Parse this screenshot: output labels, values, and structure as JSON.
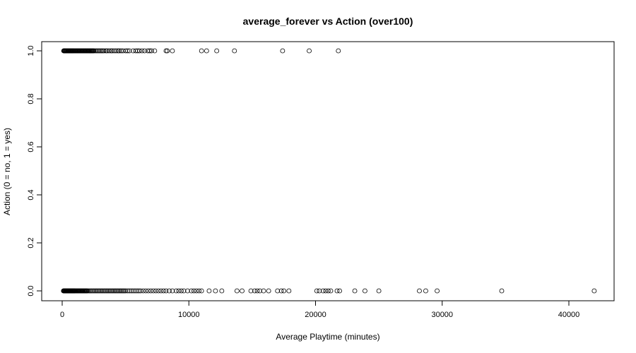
{
  "chart_data": {
    "type": "scatter",
    "title": "average_forever vs Action (over100)",
    "xlabel": "Average Playtime (minutes)",
    "ylabel": "Action (0 = no, 1 = yes)",
    "xlim": [
      0,
      44000
    ],
    "ylim": [
      0,
      1
    ],
    "x_ticks": [
      0,
      10000,
      20000,
      30000,
      40000
    ],
    "x_tick_labels": [
      "0",
      "10000",
      "20000",
      "30000",
      "40000"
    ],
    "y_ticks": [
      0,
      0.2,
      0.4,
      0.6,
      0.8,
      1
    ],
    "y_tick_labels": [
      "0.0",
      "0.2",
      "0.4",
      "0.6",
      "0.8",
      "1.0"
    ],
    "grid": false,
    "legend": "none",
    "series": [
      {
        "y_value": 1,
        "x": [
          120,
          150,
          180,
          220,
          260,
          300,
          340,
          380,
          420,
          460,
          500,
          540,
          580,
          620,
          660,
          700,
          740,
          780,
          820,
          860,
          900,
          950,
          1000,
          1050,
          1100,
          1150,
          1200,
          1250,
          1300,
          1350,
          1400,
          1450,
          1500,
          1550,
          1600,
          1650,
          1700,
          1750,
          1800,
          1850,
          1900,
          1950,
          2000,
          2050,
          2100,
          2150,
          2200,
          2250,
          2300,
          2350,
          2400,
          2450,
          2500,
          2600,
          2700,
          2800,
          2900,
          3000,
          3100,
          3200,
          3300,
          3450,
          3550,
          3700,
          3850,
          3950,
          4100,
          4250,
          4400,
          4500,
          4650,
          4800,
          5000,
          5150,
          5300,
          5600,
          5800,
          5950,
          6100,
          6300,
          6500,
          6750,
          6900,
          7050,
          7300,
          8200,
          8300,
          8700,
          11000,
          11400,
          12200,
          13600,
          17400,
          19500,
          21800
        ]
      },
      {
        "y_value": 0,
        "x": [
          100,
          130,
          160,
          190,
          220,
          250,
          280,
          310,
          340,
          370,
          400,
          430,
          460,
          490,
          520,
          550,
          580,
          610,
          640,
          670,
          700,
          730,
          760,
          790,
          820,
          850,
          880,
          910,
          940,
          970,
          1000,
          1050,
          1100,
          1150,
          1200,
          1250,
          1300,
          1350,
          1400,
          1450,
          1500,
          1550,
          1600,
          1650,
          1700,
          1750,
          1800,
          1850,
          1900,
          1950,
          2000,
          2100,
          2200,
          2300,
          2400,
          2500,
          2600,
          2700,
          2800,
          2900,
          3000,
          3100,
          3200,
          3300,
          3400,
          3500,
          3600,
          3700,
          3800,
          3900,
          4000,
          4100,
          4200,
          4300,
          4400,
          4500,
          4600,
          4700,
          4800,
          4900,
          5000,
          5150,
          5300,
          5450,
          5600,
          5750,
          5900,
          6050,
          6200,
          6400,
          6600,
          6800,
          7000,
          7200,
          7400,
          7600,
          7800,
          8000,
          8200,
          8450,
          8700,
          9000,
          9200,
          9400,
          9600,
          9900,
          10200,
          10400,
          10600,
          10800,
          11000,
          11600,
          12100,
          12600,
          13800,
          14200,
          14900,
          15200,
          15400,
          15600,
          15900,
          16300,
          17000,
          17300,
          17500,
          17900,
          20100,
          20300,
          20600,
          20800,
          21000,
          21200,
          21700,
          21900,
          23100,
          23900,
          25000,
          28200,
          28700,
          29600,
          34700,
          42000
        ]
      }
    ]
  }
}
